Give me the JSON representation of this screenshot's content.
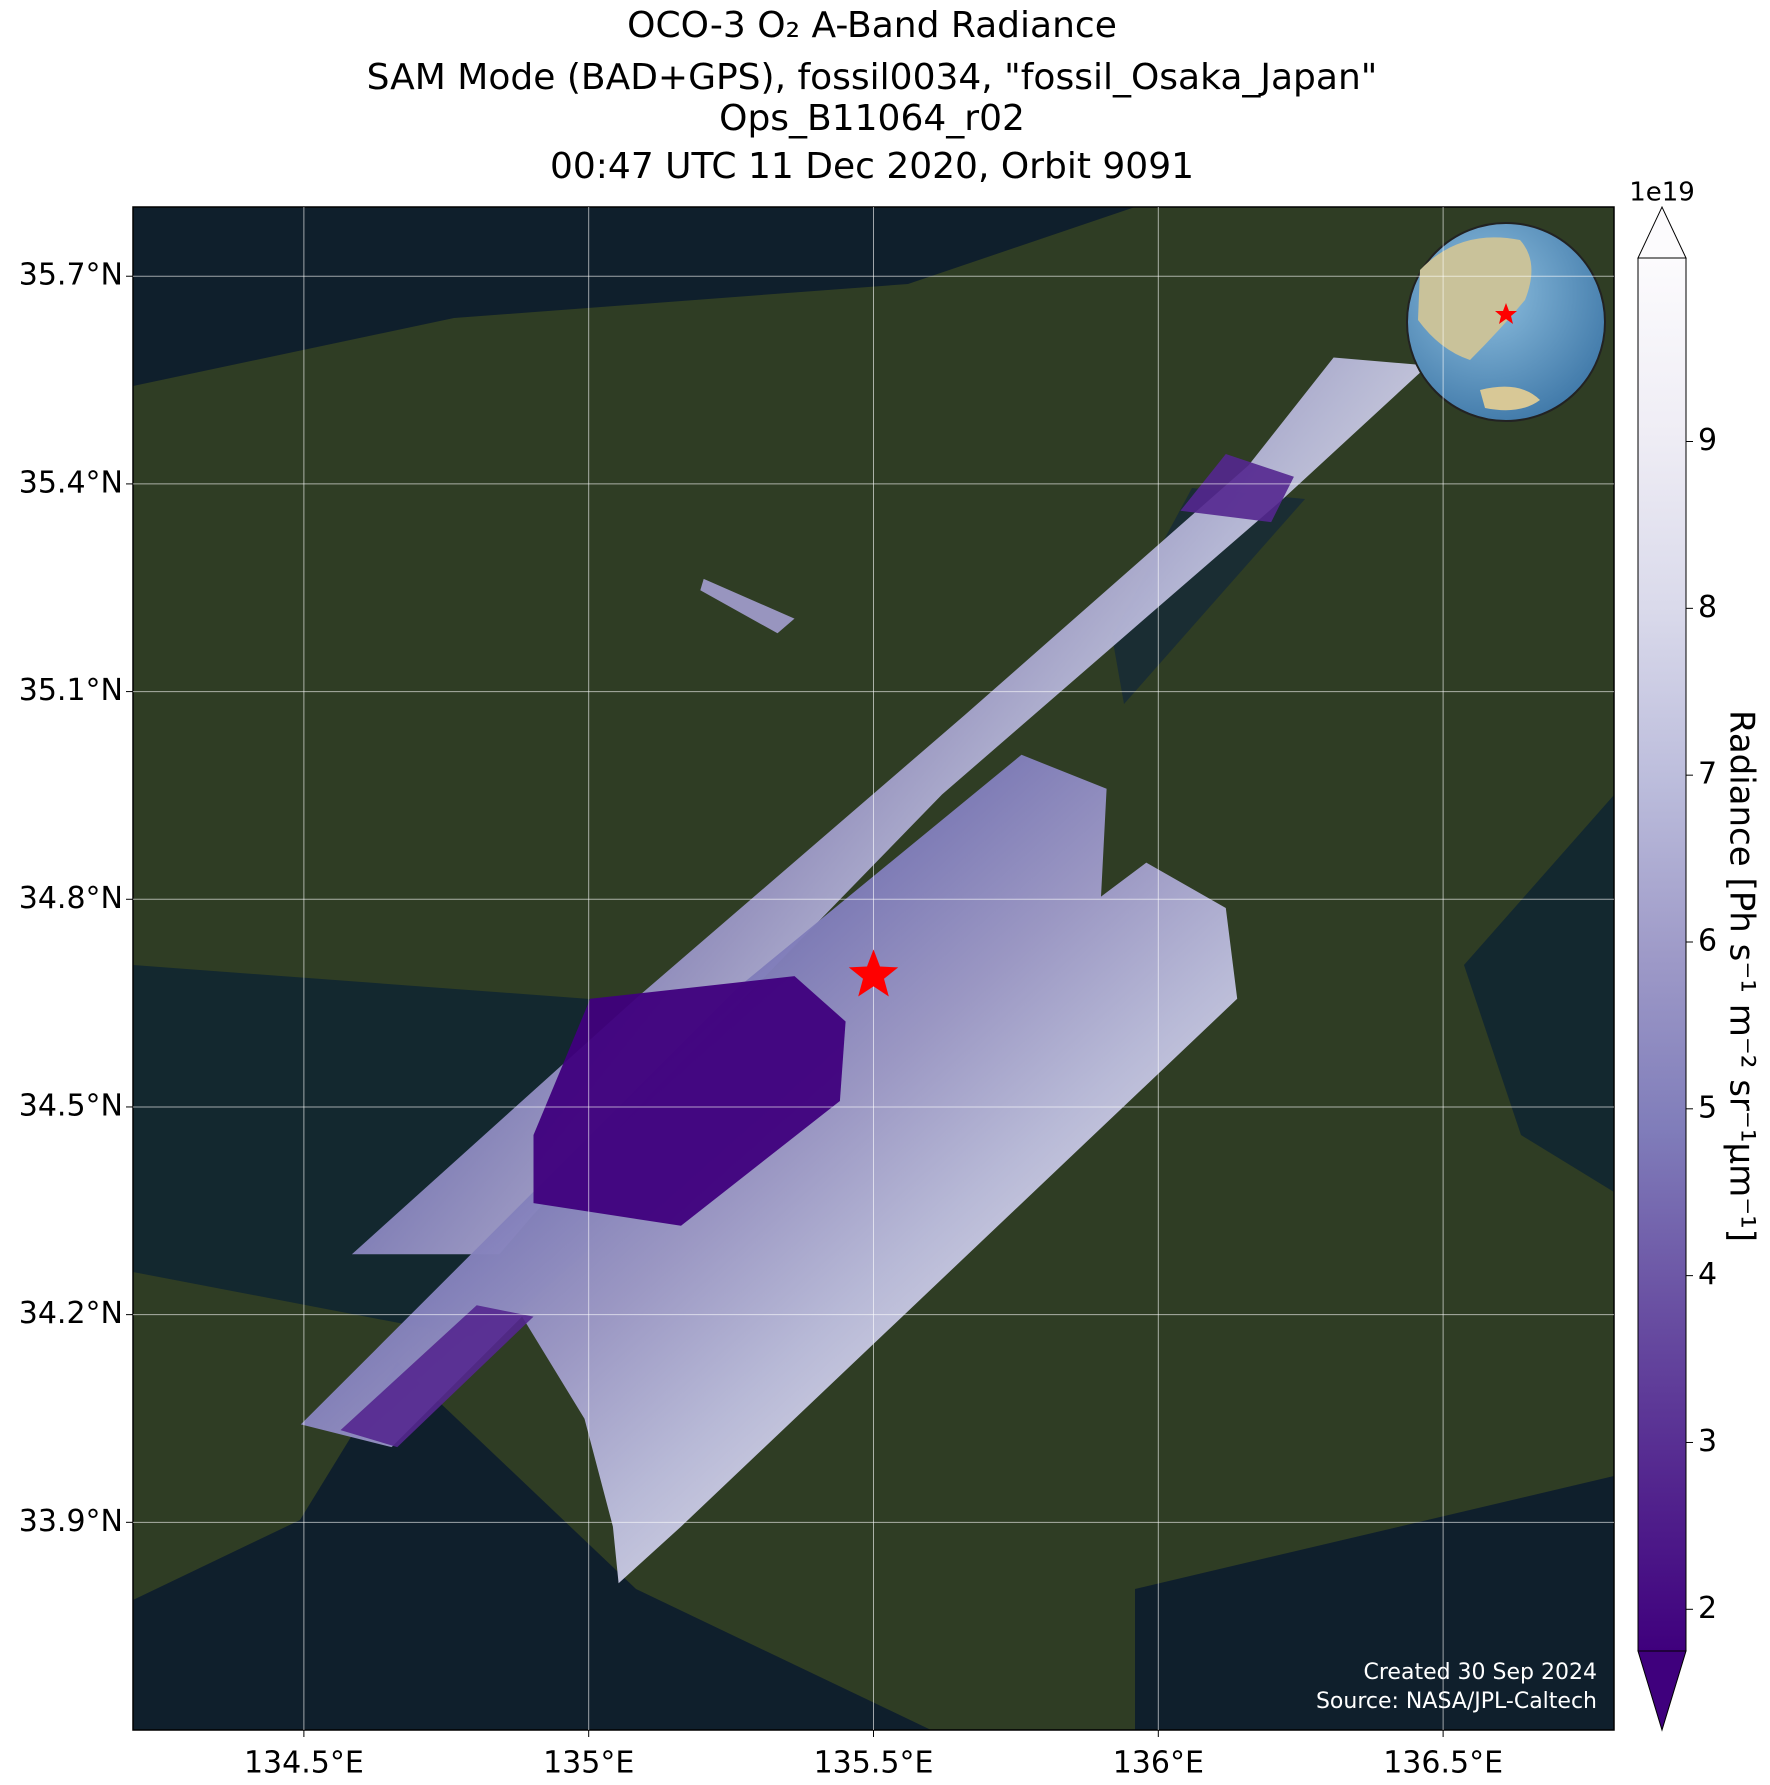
{
  "chart_data": {
    "type": "map",
    "title": [
      "OCO-3 O₂ A-Band Radiance",
      "SAM Mode (BAD+GPS), fossil0034, \"fossil_Osaka_Japan\"",
      "Ops_B11064_r02",
      "00:47 UTC 11 Dec 2020, Orbit 9091"
    ],
    "xlim": [
      134.2,
      136.8
    ],
    "ylim": [
      33.6,
      35.8
    ],
    "xticks": [
      {
        "value": 134.5,
        "label": "134.5°E"
      },
      {
        "value": 135,
        "label": "135°E"
      },
      {
        "value": 135.5,
        "label": "135.5°E"
      },
      {
        "value": 136,
        "label": "136°E"
      },
      {
        "value": 136.5,
        "label": "136.5°E"
      }
    ],
    "yticks": [
      {
        "value": 33.9,
        "label": "33.9°N"
      },
      {
        "value": 34.2,
        "label": "34.2°N"
      },
      {
        "value": 34.5,
        "label": "34.5°N"
      },
      {
        "value": 34.8,
        "label": "34.8°N"
      },
      {
        "value": 35.1,
        "label": "35.1°N"
      },
      {
        "value": 35.4,
        "label": "35.4°N"
      },
      {
        "value": 35.7,
        "label": "35.7°N"
      }
    ],
    "grid": true,
    "target": {
      "x": 135.5,
      "y": 34.69,
      "color": "#ff0000"
    },
    "colorbar": {
      "label": "Radiance [Ph s⁻¹ m⁻² sr⁻¹μm⁻¹]",
      "offset_label": "1e19",
      "lim": [
        1.75,
        10.1
      ],
      "ticks": [
        2,
        3,
        4,
        5,
        6,
        7,
        8,
        9
      ],
      "colors": [
        "#3f007d",
        "#54278f",
        "#6a51a3",
        "#807dba",
        "#9e9ac8",
        "#bcbddc",
        "#dadaeb",
        "#efedf5",
        "#fcfbfd"
      ]
    },
    "annotations": [
      "Created 30 Sep 2024",
      "Source: NASA/JPL-Caltech"
    ]
  }
}
